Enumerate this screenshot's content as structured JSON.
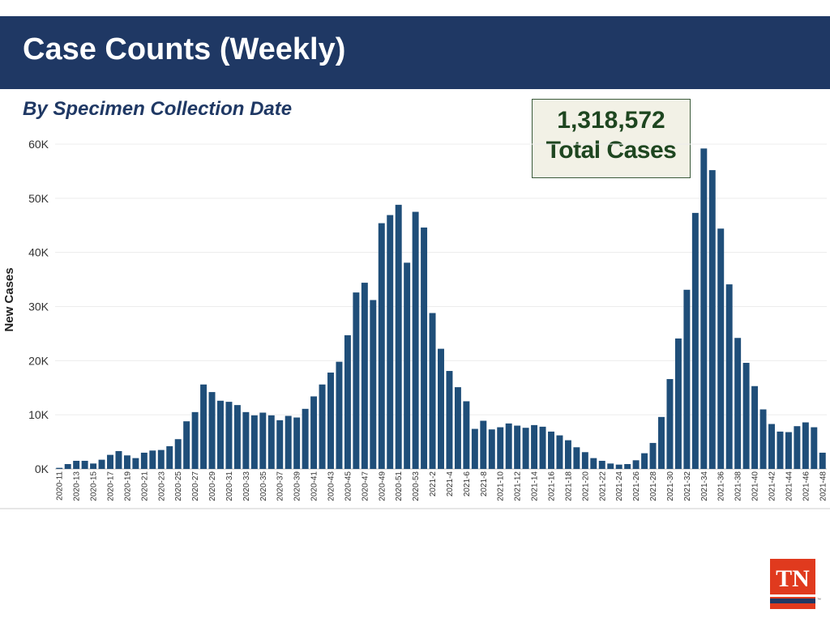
{
  "header": {
    "title": "Case Counts (Weekly)"
  },
  "subtitle": "By Specimen Collection Date",
  "total_box": {
    "number": "1,318,572",
    "label": "Total Cases"
  },
  "logo": {
    "text": "TN",
    "tm": "™"
  },
  "colors": {
    "header_bg": "#1f3864",
    "bar": "#1f4e79",
    "box_text": "#1e4620",
    "logo_red": "#e03a1e"
  },
  "chart_data": {
    "type": "bar",
    "title": "Case Counts (Weekly)",
    "ylabel": "New Cases",
    "xlabel": "",
    "ylim": [
      0,
      60000
    ],
    "yticks": [
      0,
      10000,
      20000,
      30000,
      40000,
      50000,
      60000
    ],
    "ytick_labels": [
      "0K",
      "10K",
      "20K",
      "30K",
      "40K",
      "50K",
      "60K"
    ],
    "grid": true,
    "categories": [
      "2020-11",
      "2020-12",
      "2020-13",
      "2020-14",
      "2020-15",
      "2020-16",
      "2020-17",
      "2020-18",
      "2020-19",
      "2020-20",
      "2020-21",
      "2020-22",
      "2020-23",
      "2020-24",
      "2020-25",
      "2020-26",
      "2020-27",
      "2020-28",
      "2020-29",
      "2020-30",
      "2020-31",
      "2020-32",
      "2020-33",
      "2020-34",
      "2020-35",
      "2020-36",
      "2020-37",
      "2020-38",
      "2020-39",
      "2020-40",
      "2020-41",
      "2020-42",
      "2020-43",
      "2020-44",
      "2020-45",
      "2020-46",
      "2020-47",
      "2020-48",
      "2020-49",
      "2020-50",
      "2020-51",
      "2020-52",
      "2020-53",
      "2021-1",
      "2021-2",
      "2021-3",
      "2021-4",
      "2021-5",
      "2021-6",
      "2021-7",
      "2021-8",
      "2021-9",
      "2021-10",
      "2021-11",
      "2021-12",
      "2021-13",
      "2021-14",
      "2021-15",
      "2021-16",
      "2021-17",
      "2021-18",
      "2021-19",
      "2021-20",
      "2021-21",
      "2021-22",
      "2021-23",
      "2021-24",
      "2021-25",
      "2021-26",
      "2021-27",
      "2021-28",
      "2021-29",
      "2021-30",
      "2021-31",
      "2021-32",
      "2021-33",
      "2021-34",
      "2021-35",
      "2021-36",
      "2021-37",
      "2021-38",
      "2021-39",
      "2021-40",
      "2021-41",
      "2021-42",
      "2021-43",
      "2021-44",
      "2021-45",
      "2021-46",
      "2021-47",
      "2021-48"
    ],
    "tick_labels": [
      "2020-11",
      "2020-13",
      "2020-15",
      "2020-17",
      "2020-19",
      "2020-21",
      "2020-23",
      "2020-25",
      "2020-27",
      "2020-29",
      "2020-31",
      "2020-33",
      "2020-35",
      "2020-37",
      "2020-39",
      "2020-41",
      "2020-43",
      "2020-45",
      "2020-47",
      "2020-49",
      "2020-51",
      "2020-53",
      "2021-2",
      "2021-4",
      "2021-6",
      "2021-8",
      "2021-10",
      "2021-12",
      "2021-14",
      "2021-16",
      "2021-18",
      "2021-20",
      "2021-22",
      "2021-24",
      "2021-26",
      "2021-28",
      "2021-30",
      "2021-32",
      "2021-34",
      "2021-36",
      "2021-38",
      "2021-40",
      "2021-42",
      "2021-44",
      "2021-46",
      "2021-48"
    ],
    "values": [
      200,
      900,
      1500,
      1500,
      1000,
      1700,
      2600,
      3300,
      2500,
      2000,
      3000,
      3400,
      3500,
      4200,
      5500,
      8800,
      10500,
      15600,
      14200,
      12600,
      12400,
      11800,
      10500,
      9900,
      10400,
      9900,
      9000,
      9800,
      9500,
      11100,
      13400,
      15600,
      17800,
      19800,
      24700,
      32600,
      34400,
      31200,
      45400,
      46900,
      48800,
      38100,
      47500,
      44600,
      28800,
      22200,
      18100,
      15100,
      12500,
      7400,
      8900,
      7300,
      7700,
      8400,
      8000,
      7600,
      8100,
      7800,
      6900,
      6200,
      5300,
      4000,
      3100,
      2000,
      1500,
      1000,
      800,
      900,
      1600,
      2900,
      4800,
      9600,
      16600,
      24100,
      33100,
      47300,
      59200,
      55200,
      44400,
      34100,
      24200,
      19600,
      15300,
      11000,
      8300,
      6900,
      6800,
      7900,
      8600,
      7700,
      3000
    ]
  }
}
